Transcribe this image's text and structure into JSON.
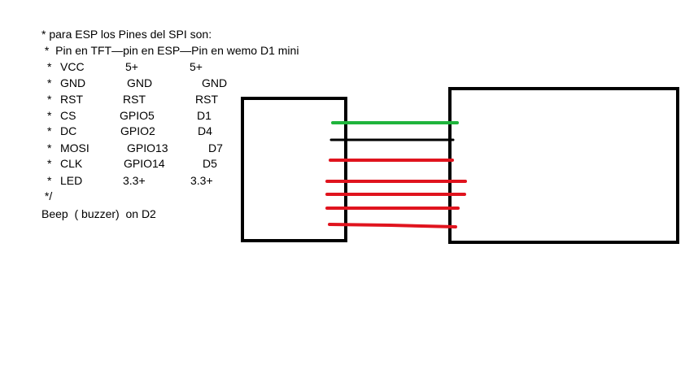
{
  "notes": {
    "title": "* para ESP los Pines del SPI son:",
    "header": " *  Pin en TFT—pin en ESP—Pin en wemo D1 mini",
    "rows": [
      {
        "prefix": "*",
        "tft": "VCC",
        "esp": "5+",
        "d1": "5+"
      },
      {
        "prefix": "*",
        "tft": "GND",
        "esp": "GND",
        "d1": "GND"
      },
      {
        "prefix": "*",
        "tft": "RST",
        "esp": "RST",
        "d1": "RST"
      },
      {
        "prefix": "*",
        "tft": "CS",
        "esp": "GPIO5",
        "d1": "D1"
      },
      {
        "prefix": "*",
        "tft": "DC",
        "esp": "GPIO2",
        "d1": "D4"
      },
      {
        "prefix": "*",
        "tft": "MOSI",
        "esp": "GPIO13",
        "d1": "D7"
      },
      {
        "prefix": "*",
        "tft": "CLK",
        "esp": "GPIO14",
        "d1": "D5"
      },
      {
        "prefix": "*",
        "tft": "LED",
        "esp": "3.3+",
        "d1": "3.3+"
      }
    ],
    "closing": " */",
    "beep": "Beep  ( buzzer)  on D2"
  },
  "diagram": {
    "box_color": "#000000",
    "wire_colors": [
      "#1fb43c",
      "#000000",
      "#e0141e",
      "#e0141e",
      "#e0141e",
      "#e0141e",
      "#e0141e"
    ]
  }
}
